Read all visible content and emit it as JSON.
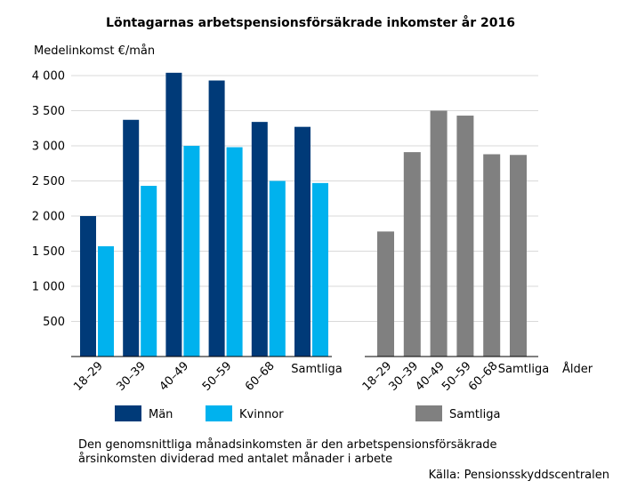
{
  "chart_data": {
    "type": "bar",
    "title": "Löntagarnas arbetspensionsförsäkrade inkomster år 2016",
    "ylabel": "Medelinkomst €/mån",
    "xlabel": "Ålder",
    "ylim": [
      0,
      4000
    ],
    "yticks": [
      500,
      1000,
      1500,
      2000,
      2500,
      3000,
      3500,
      4000
    ],
    "ytick_labels": [
      "500",
      "1 000",
      "1 500",
      "2 000",
      "2 500",
      "3 000",
      "3 500",
      "4 000"
    ],
    "grid": true,
    "groups": [
      {
        "categories": [
          "18–29",
          "30–39",
          "40–49",
          "50–59",
          "60–68",
          "Samtliga"
        ],
        "series": [
          {
            "name": "Män",
            "color": "#003A78",
            "values": [
              2000,
              3370,
              4040,
              3930,
              3340,
              3270
            ]
          },
          {
            "name": "Kvinnor",
            "color": "#00B2EE",
            "values": [
              1570,
              2430,
              3000,
              2980,
              2500,
              2470
            ]
          }
        ]
      },
      {
        "categories": [
          "18–29",
          "30–39",
          "40–49",
          "50–59",
          "60–68",
          "Samtliga"
        ],
        "series": [
          {
            "name": "Samtliga",
            "color": "#808080",
            "values": [
              1780,
              2910,
              3500,
              3430,
              2880,
              2870
            ]
          }
        ]
      }
    ],
    "legend": {
      "placement": "bottom",
      "entries": [
        "Män",
        "Kvinnor",
        "Samtliga"
      ]
    },
    "footnote": "Den genomsnittliga månadsinkomsten är den arbetspensionsförsäkrade årsinkomsten dividerad med antalet månader i arbete",
    "source": "Källa: Pensionsskyddscentralen"
  }
}
